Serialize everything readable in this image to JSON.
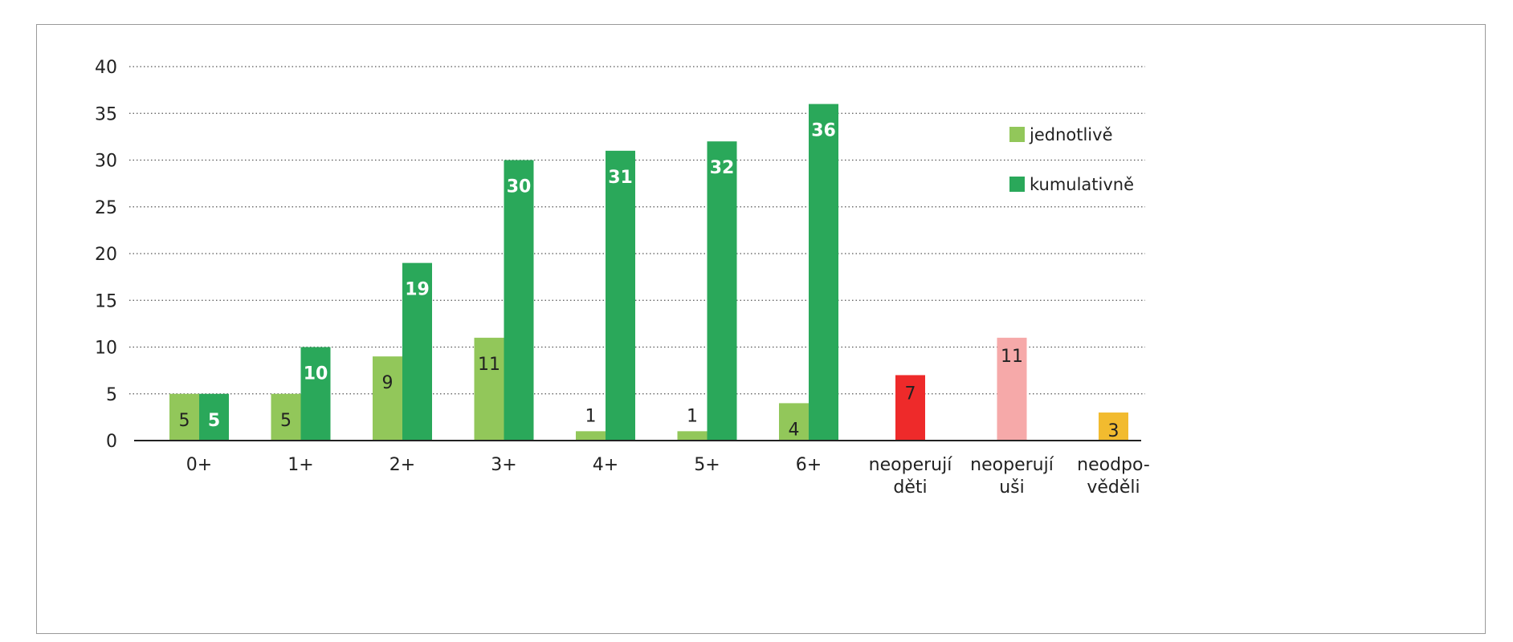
{
  "chart_data": {
    "type": "bar",
    "categories": [
      [
        "0+"
      ],
      [
        "1+"
      ],
      [
        "2+"
      ],
      [
        "3+"
      ],
      [
        "4+"
      ],
      [
        "5+"
      ],
      [
        "6+"
      ],
      [
        "neoperují",
        "děti"
      ],
      [
        "neoperují",
        "uši"
      ],
      [
        "neodpo-",
        "věděli"
      ]
    ],
    "series": [
      {
        "name": "jednotlivě",
        "color": "#92c75a",
        "values": [
          5,
          5,
          9,
          11,
          1,
          1,
          4,
          null,
          null,
          null
        ]
      },
      {
        "name": "kumulativně",
        "color": "#2aa85a",
        "values": [
          5,
          10,
          19,
          30,
          31,
          32,
          36,
          null,
          null,
          null
        ]
      }
    ],
    "single_bars": [
      {
        "category_index": 7,
        "value": 7,
        "color": "#ee2a2a"
      },
      {
        "category_index": 8,
        "value": 11,
        "color": "#f6a9a9"
      },
      {
        "category_index": 9,
        "value": 3,
        "color": "#f2bb2f"
      }
    ],
    "ylim": [
      0,
      40
    ],
    "yticks": [
      0,
      5,
      10,
      15,
      20,
      25,
      30,
      35,
      40
    ],
    "grid": true,
    "legend_position": "top-right"
  }
}
